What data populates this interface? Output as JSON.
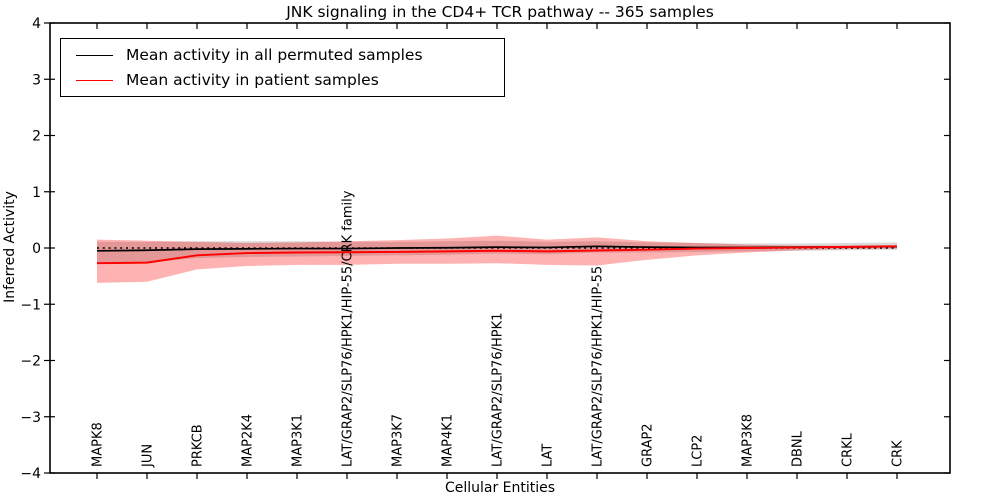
{
  "title": "JNK signaling in the CD4+ TCR pathway -- 365 samples",
  "axes": {
    "x_label": "Cellular Entities",
    "y_label": "Inferred Activity"
  },
  "legend": {
    "items": [
      {
        "label": "Mean activity in all permuted samples",
        "color": "#000000"
      },
      {
        "label": "Mean activity in patient samples",
        "color": "#ff0000"
      }
    ]
  },
  "chart_data": {
    "type": "line",
    "title": "JNK signaling in the CD4+ TCR pathway -- 365 samples",
    "xlabel": "Cellular Entities",
    "ylabel": "Inferred Activity",
    "ylim": [
      -4,
      4
    ],
    "grid": false,
    "legend_position": "upper left",
    "xtick_rotation": 90,
    "yticks": [
      4,
      3,
      2,
      1,
      0,
      -1,
      -2,
      -3,
      -4
    ],
    "ytick_labels": [
      "4",
      "3",
      "2",
      "1",
      "0",
      "−1",
      "−2",
      "−3",
      "−4"
    ],
    "categories": [
      "MAPK8",
      "JUN",
      "PRKCB",
      "MAP2K4",
      "MAP3K1",
      "LAT/GRAP2/SLP76/HPK1/HIP-55/CRK family",
      "MAP3K7",
      "MAP4K1",
      "LAT/GRAP2/SLP76/HPK1",
      "LAT",
      "LAT/GRAP2/SLP76/HPK1/HIP-55",
      "GRAP2",
      "LCP2",
      "MAP3K8",
      "DBNL",
      "CRKL",
      "CRK"
    ],
    "series": [
      {
        "name": "Mean activity in all permuted samples",
        "color": "#000000",
        "line_width": 1.7,
        "values": [
          -0.05,
          -0.04,
          -0.02,
          -0.015,
          -0.01,
          -0.01,
          0.0,
          0.005,
          0.015,
          0.01,
          0.03,
          0.015,
          0.01,
          0.01,
          0.015,
          0.02,
          0.025
        ]
      },
      {
        "name": "Mean activity in patient samples",
        "color": "#ff0000",
        "line_width": 2,
        "values": [
          -0.27,
          -0.26,
          -0.13,
          -0.09,
          -0.08,
          -0.075,
          -0.07,
          -0.06,
          -0.05,
          -0.06,
          -0.045,
          -0.03,
          -0.01,
          0.0,
          0.01,
          0.02,
          0.03
        ]
      }
    ],
    "bands": [
      {
        "name": "permuted-activity-band",
        "color": "#000000",
        "opacity": 0.15,
        "upper": [
          0.11,
          0.11,
          0.12,
          0.12,
          0.12,
          0.11,
          0.11,
          0.12,
          0.13,
          0.11,
          0.12,
          0.1,
          0.09,
          0.08,
          0.08,
          0.09,
          0.1
        ],
        "lower": [
          -0.27,
          -0.26,
          -0.18,
          -0.16,
          -0.15,
          -0.14,
          -0.13,
          -0.12,
          -0.1,
          -0.11,
          -0.08,
          -0.08,
          -0.07,
          -0.06,
          -0.05,
          -0.04,
          -0.03
        ]
      },
      {
        "name": "patient-activity-band",
        "color": "#ff0000",
        "opacity": 0.3,
        "upper": [
          0.15,
          0.13,
          0.11,
          0.09,
          0.1,
          0.12,
          0.14,
          0.17,
          0.22,
          0.15,
          0.19,
          0.12,
          0.09,
          0.06,
          0.04,
          0.04,
          0.05
        ],
        "lower": [
          -0.62,
          -0.6,
          -0.38,
          -0.32,
          -0.3,
          -0.3,
          -0.28,
          -0.28,
          -0.27,
          -0.3,
          -0.31,
          -0.21,
          -0.13,
          -0.08,
          -0.04,
          -0.02,
          -0.01
        ]
      }
    ],
    "reference_line": {
      "y": 0,
      "style": "dotted",
      "color": "#000000"
    }
  }
}
